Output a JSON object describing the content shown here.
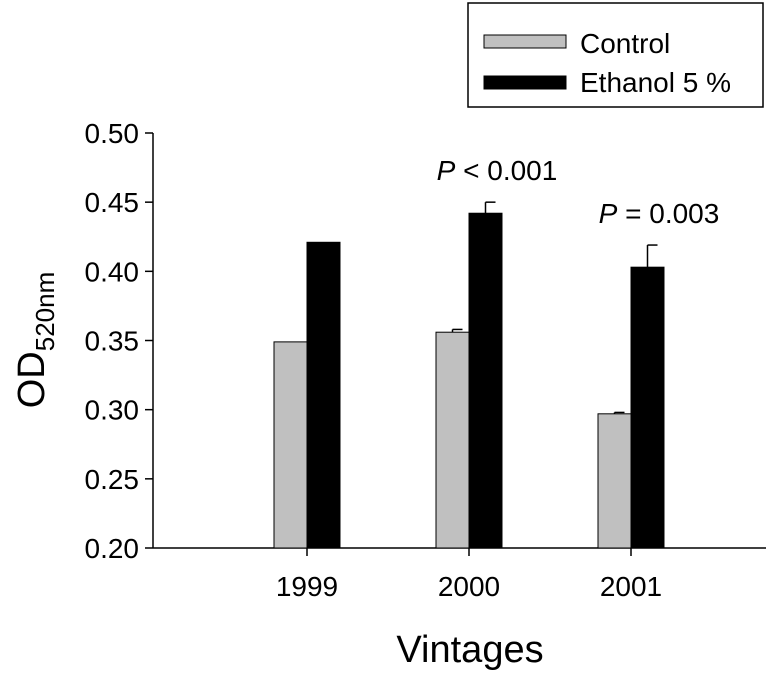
{
  "chart_data": {
    "type": "bar",
    "categories": [
      "1999",
      "2000",
      "2001"
    ],
    "series": [
      {
        "name": "Control",
        "values": [
          0.349,
          0.356,
          0.297
        ],
        "errors": [
          0,
          0.002,
          0.001
        ],
        "color": "#c0c0c0"
      },
      {
        "name": "Ethanol 5 %",
        "values": [
          0.421,
          0.442,
          0.403
        ],
        "errors": [
          0,
          0.008,
          0.016
        ],
        "color": "#000000"
      }
    ],
    "xlabel": "Vintages",
    "ylabel": "OD",
    "ylabel_sub": "520nm",
    "ylim": [
      0.2,
      0.5
    ],
    "yticks": [
      "0.20",
      "0.25",
      "0.30",
      "0.35",
      "0.40",
      "0.45",
      "0.50"
    ],
    "grid": false,
    "legend": "top-right",
    "annotations": [
      {
        "category": "2000",
        "italic": "P",
        "text": " < 0.001"
      },
      {
        "category": "2001",
        "italic": "P",
        "text": " = 0.003"
      }
    ]
  }
}
